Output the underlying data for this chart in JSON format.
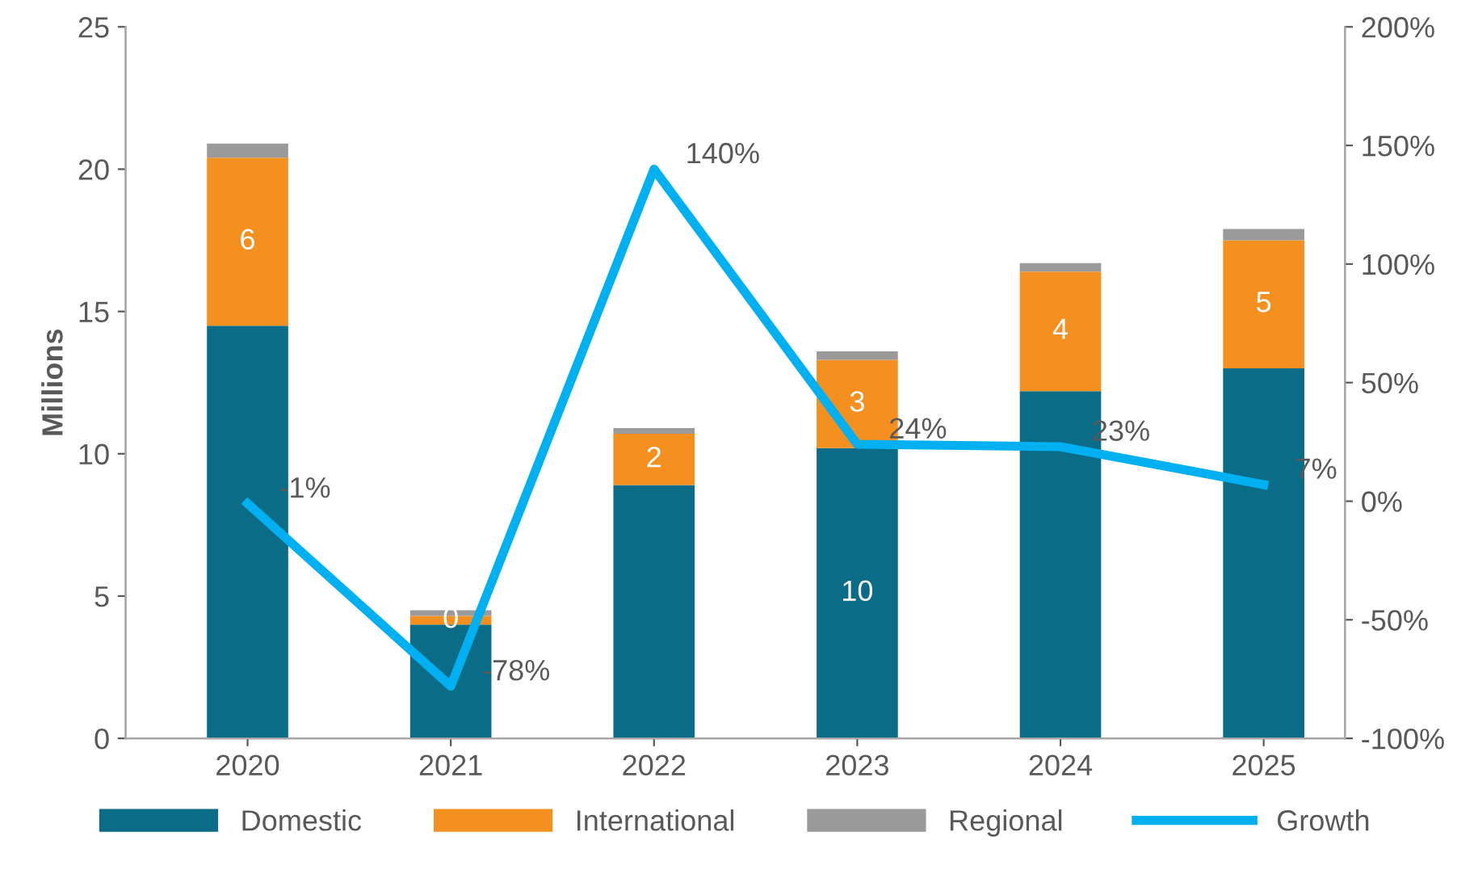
{
  "chart_data": {
    "type": "bar",
    "stacked": true,
    "ylabel": "Millions",
    "categories": [
      "2020",
      "2021",
      "2022",
      "2023",
      "2024",
      "2025"
    ],
    "series": [
      {
        "name": "Domestic",
        "color": "#0b6c88",
        "values": [
          14.5,
          4.0,
          8.9,
          10.2,
          12.2,
          13.0
        ],
        "value_labels": [
          null,
          null,
          null,
          "10",
          null,
          null
        ]
      },
      {
        "name": "International",
        "color": "#f39020",
        "values": [
          5.9,
          0.3,
          1.8,
          3.1,
          4.2,
          4.5
        ],
        "value_labels": [
          "6",
          "0",
          "2",
          "3",
          "4",
          "5"
        ]
      },
      {
        "name": "Regional",
        "color": "#9a9a9a",
        "values": [
          0.5,
          0.2,
          0.2,
          0.3,
          0.3,
          0.4
        ]
      },
      {
        "name": "Growth",
        "type": "line",
        "axis": "y2",
        "color": "#00b0f0",
        "values": [
          -1,
          -78,
          140,
          24,
          23,
          7
        ],
        "value_labels": [
          "-1%",
          "-78%",
          "140%",
          "24%",
          "23%",
          "7%"
        ],
        "marker": "none"
      }
    ],
    "ylim": [
      0,
      25
    ],
    "yticks": [
      0,
      5,
      10,
      15,
      20,
      25
    ],
    "y2lim": [
      -100,
      200
    ],
    "y2ticks": [
      {
        "value": -100,
        "label": "-100%"
      },
      {
        "value": -50,
        "label": "-50%"
      },
      {
        "value": 0,
        "label": "0%"
      },
      {
        "value": 50,
        "label": "50%"
      },
      {
        "value": 100,
        "label": "100%"
      },
      {
        "value": 150,
        "label": "150%"
      },
      {
        "value": 200,
        "label": "200%"
      }
    ],
    "grid": false,
    "legend": "bottom"
  }
}
